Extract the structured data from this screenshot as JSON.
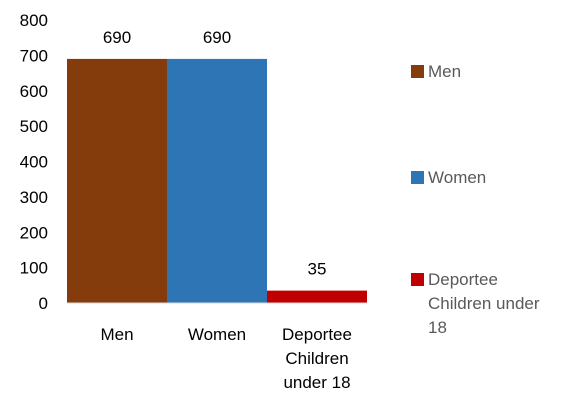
{
  "chart_data": {
    "type": "bar",
    "categories": [
      "Men",
      "Women",
      "Deportee Children under 18"
    ],
    "category_label_lines": [
      [
        "Men"
      ],
      [
        "Women"
      ],
      [
        "Deportee",
        "Children",
        "under 18"
      ]
    ],
    "values": [
      690,
      690,
      35
    ],
    "data_labels": [
      "690",
      "690",
      "35"
    ],
    "colors": [
      "#843C0C",
      "#2E75B6",
      "#C00000"
    ],
    "ylim": [
      0,
      800
    ],
    "yticks": [
      0,
      100,
      200,
      300,
      400,
      500,
      600,
      700,
      800
    ],
    "grid": false,
    "legend": {
      "placement": "right",
      "entries": [
        {
          "label": "Men",
          "color": "#843C0C",
          "lines": [
            "Men"
          ]
        },
        {
          "label": "Women",
          "color": "#2E75B6",
          "lines": [
            "Women"
          ]
        },
        {
          "label": "Deportee Children under 18",
          "color": "#C00000",
          "lines": [
            "Deportee",
            "Children under",
            "18"
          ]
        }
      ]
    }
  }
}
